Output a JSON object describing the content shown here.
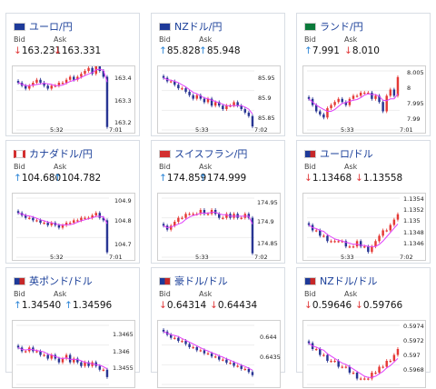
{
  "labels": {
    "bid": "Bid",
    "ask": "Ask"
  },
  "colors": {
    "up_arrow": "#2a84d6",
    "down_arrow": "#e0393a",
    "candle_up": "#e53935",
    "candle_down": "#283593",
    "ma": "#e040fb"
  },
  "cards": [
    {
      "title": "ユーロ/円",
      "flag": "eu-flag-icon",
      "state": "down",
      "bid_dir": "down",
      "ask_dir": "down",
      "bid": "163.231",
      "ask": "163.331",
      "ylabels": [
        "163.4",
        "163.3",
        "163.2"
      ],
      "xlabels": [
        "5:32",
        "7:01"
      ],
      "closes": [
        163.36,
        163.35,
        163.34,
        163.35,
        163.36,
        163.37,
        163.36,
        163.35,
        163.34,
        163.35,
        163.35,
        163.36,
        163.36,
        163.37,
        163.38,
        163.37,
        163.38,
        163.39,
        163.4,
        163.41,
        163.39,
        163.43,
        163.4,
        163.38,
        163.21
      ]
    },
    {
      "title": "NZドル/円",
      "flag": "nz-flag-icon",
      "state": "up",
      "bid_dir": "up",
      "ask_dir": "up",
      "bid": "85.828",
      "ask": "85.948",
      "ylabels": [
        "85.95",
        "85.9",
        "85.85"
      ],
      "xlabels": [
        "5:33",
        "7:02"
      ],
      "closes": [
        85.98,
        85.97,
        85.97,
        85.96,
        85.95,
        85.95,
        85.94,
        85.93,
        85.92,
        85.93,
        85.92,
        85.91,
        85.92,
        85.9,
        85.91,
        85.9,
        85.89,
        85.9,
        85.9,
        85.91,
        85.9,
        85.89,
        85.88,
        85.87,
        85.84
      ]
    },
    {
      "title": "ランド/円",
      "flag": "za-flag-icon",
      "state": "up",
      "bid_dir": "up",
      "ask_dir": "down",
      "bid": "7.991",
      "ask": "8.010",
      "ylabels": [
        "8.005",
        "8",
        "7.995",
        "7.99"
      ],
      "xlabels": [
        "5:33",
        "7:01"
      ],
      "closes": [
        7.998,
        7.996,
        7.994,
        7.993,
        7.992,
        7.995,
        7.996,
        7.997,
        7.998,
        7.997,
        7.996,
        7.998,
        7.999,
        7.999,
        8.0,
        8.0,
        8.0,
        7.998,
        7.999,
        7.997,
        7.994,
        7.999,
        8.001,
        7.999,
        8.005
      ]
    },
    {
      "title": "カナダドル/円",
      "flag": "ca-flag-icon",
      "state": "up",
      "bid_dir": "up",
      "ask_dir": "up",
      "bid": "104.680",
      "ask": "104.782",
      "ylabels": [
        "104.9",
        "104.8",
        "104.7"
      ],
      "xlabels": [
        "5:32",
        "7:01"
      ],
      "closes": [
        104.86,
        104.85,
        104.84,
        104.84,
        104.83,
        104.83,
        104.82,
        104.82,
        104.81,
        104.82,
        104.81,
        104.8,
        104.81,
        104.82,
        104.82,
        104.83,
        104.83,
        104.84,
        104.84,
        104.84,
        104.85,
        104.86,
        104.84,
        104.83,
        104.7
      ]
    },
    {
      "title": "スイスフラン/円",
      "flag": "ch-flag-icon",
      "state": "up",
      "bid_dir": "up",
      "ask_dir": "up",
      "bid": "174.859",
      "ask": "174.999",
      "ylabels": [
        "174.95",
        "174.9",
        "174.85"
      ],
      "xlabels": [
        "5:33",
        "7:02"
      ],
      "closes": [
        174.9,
        174.89,
        174.9,
        174.91,
        174.92,
        174.92,
        174.93,
        174.93,
        174.93,
        174.93,
        174.94,
        174.93,
        174.93,
        174.94,
        174.93,
        174.92,
        174.92,
        174.93,
        174.92,
        174.93,
        174.92,
        174.92,
        174.93,
        174.92,
        174.83
      ]
    },
    {
      "title": "ユーロ/ドル",
      "flag": "eu-us-flag-icon",
      "state": "down",
      "bid_dir": "down",
      "ask_dir": "down",
      "bid": "1.13468",
      "ask": "1.13558",
      "ylabels": [
        "1.1354",
        "1.1352",
        "1.135",
        "1.1348",
        "1.1346"
      ],
      "xlabels": [
        "5:33",
        "7:02"
      ],
      "closes": [
        1.135,
        1.1349,
        1.1349,
        1.1348,
        1.1348,
        1.1347,
        1.1347,
        1.1347,
        1.1347,
        1.1347,
        1.1346,
        1.1346,
        1.1346,
        1.1347,
        1.1346,
        1.1346,
        1.1345,
        1.1346,
        1.1347,
        1.1348,
        1.1349,
        1.1349,
        1.135,
        1.1351,
        1.1352
      ]
    },
    {
      "title": "英ポンド/ドル",
      "flag": "gb-us-flag-icon",
      "state": "up",
      "bid_dir": "up",
      "ask_dir": "up",
      "bid": "1.34540",
      "ask": "1.34596",
      "ylabels": [
        "1.3465",
        "1.346",
        "1.3455"
      ],
      "xlabels": [],
      "closes": [
        1.3462,
        1.3461,
        1.3461,
        1.3462,
        1.3461,
        1.3461,
        1.346,
        1.346,
        1.3459,
        1.346,
        1.3459,
        1.3458,
        1.3459,
        1.346,
        1.3458,
        1.3459,
        1.3458,
        1.3457,
        1.3458,
        1.3457,
        1.3458,
        1.3457,
        1.3456,
        1.3456,
        1.3454
      ]
    },
    {
      "title": "豪ドル/ドル",
      "flag": "au-us-flag-icon",
      "state": "down",
      "bid_dir": "down",
      "ask_dir": "down",
      "bid": "0.64314",
      "ask": "0.64434",
      "ylabels": [
        "0.644",
        "0.6435"
      ],
      "xlabels": [],
      "closes": [
        0.6445,
        0.6444,
        0.6443,
        0.6443,
        0.6442,
        0.6442,
        0.6441,
        0.644,
        0.644,
        0.6439,
        0.6439,
        0.6438,
        0.6438,
        0.6437,
        0.6437,
        0.6436,
        0.6436,
        0.6435,
        0.6435,
        0.6434,
        0.6434,
        0.6433,
        0.6433,
        0.6432,
        0.6431
      ]
    },
    {
      "title": "NZドル/ドル",
      "flag": "nz-us-flag-icon",
      "state": "down",
      "bid_dir": "down",
      "ask_dir": "down",
      "bid": "0.59646",
      "ask": "0.59766",
      "ylabels": [
        "0.5974",
        "0.5972",
        "0.597",
        "0.5968"
      ],
      "xlabels": [],
      "closes": [
        0.5972,
        0.5971,
        0.5971,
        0.597,
        0.597,
        0.5969,
        0.5969,
        0.5969,
        0.5968,
        0.5968,
        0.5968,
        0.5967,
        0.5967,
        0.5966,
        0.5966,
        0.5966,
        0.5966,
        0.5967,
        0.5967,
        0.5968,
        0.5968,
        0.5969,
        0.5969,
        0.597,
        0.5971
      ]
    }
  ]
}
